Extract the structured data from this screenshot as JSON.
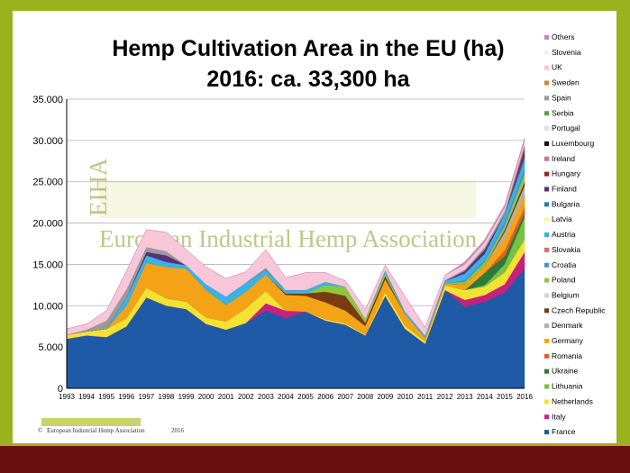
{
  "chart_data": {
    "type": "area",
    "stacked": true,
    "title_line1": "Hemp Cultivation Area in the EU (ha)",
    "title_line2": "2016: ca. 33,300 ha",
    "xlabel": "",
    "ylabel": "",
    "ylim": [
      0,
      35000
    ],
    "yticks": [
      0,
      5000,
      10000,
      15000,
      20000,
      25000,
      30000,
      35000
    ],
    "ytick_labels": [
      "0",
      "5.000",
      "10.000",
      "15.000",
      "20.000",
      "25.000",
      "30.000",
      "35.000"
    ],
    "grid": true,
    "legend_position": "right",
    "x": [
      "1993",
      "1994",
      "1995",
      "1996",
      "1997",
      "1998",
      "1999",
      "2000",
      "2001",
      "2002",
      "2003",
      "2004",
      "2005",
      "2006",
      "2007",
      "2008",
      "2009",
      "2010",
      "2011",
      "2012",
      "2013",
      "2014",
      "2015",
      "2016"
    ],
    "series": [
      {
        "name": "France",
        "color": "#1f5aa6",
        "values": [
          6000,
          6400,
          6200,
          7500,
          11000,
          10000,
          9600,
          7800,
          7100,
          7900,
          9400,
          8500,
          9300,
          8200,
          7700,
          6400,
          11200,
          7200,
          5400,
          11900,
          9900,
          10500,
          11600,
          14500
        ]
      },
      {
        "name": "Italy",
        "color": "#c7207e",
        "values": [
          0,
          0,
          0,
          0,
          0,
          0,
          0,
          0,
          0,
          0,
          900,
          900,
          0,
          0,
          0,
          0,
          0,
          0,
          0,
          0,
          800,
          800,
          1000,
          2000
        ]
      },
      {
        "name": "Netherlands",
        "color": "#f4e233",
        "values": [
          500,
          500,
          1000,
          1000,
          1200,
          900,
          900,
          800,
          1000,
          1800,
          1500,
          0,
          0,
          200,
          200,
          150,
          500,
          400,
          300,
          600,
          1200,
          1000,
          1400,
          1500
        ]
      },
      {
        "name": "Lithuania",
        "color": "#79c143",
        "values": [
          0,
          0,
          0,
          0,
          0,
          0,
          0,
          0,
          0,
          0,
          0,
          0,
          0,
          0,
          0,
          0,
          0,
          0,
          0,
          0,
          0,
          200,
          1000,
          2700
        ]
      },
      {
        "name": "Ukraine",
        "color": "#2d7a3a",
        "values": [
          0,
          0,
          0,
          0,
          0,
          0,
          0,
          0,
          0,
          0,
          0,
          0,
          0,
          0,
          0,
          0,
          0,
          0,
          0,
          0,
          0,
          1500,
          1000,
          500
        ]
      },
      {
        "name": "Romania",
        "color": "#e85c20",
        "values": [
          0,
          0,
          0,
          0,
          0,
          0,
          0,
          0,
          0,
          0,
          0,
          0,
          0,
          0,
          0,
          0,
          0,
          0,
          0,
          0,
          0,
          0,
          700,
          800
        ]
      },
      {
        "name": "Germany",
        "color": "#f5a316",
        "values": [
          0,
          0,
          0,
          1500,
          3000,
          3800,
          4000,
          3300,
          2000,
          2000,
          2000,
          1900,
          1900,
          2000,
          1500,
          1000,
          1500,
          1400,
          400,
          200,
          700,
          800,
          1500,
          1500
        ]
      },
      {
        "name": "Denmark",
        "color": "#b0b0b0",
        "values": [
          0,
          0,
          0,
          0,
          0,
          0,
          0,
          0,
          0,
          0,
          0,
          0,
          0,
          0,
          0,
          0,
          0,
          0,
          0,
          0,
          0,
          0,
          700,
          1000
        ]
      },
      {
        "name": "Czech Republic",
        "color": "#7a3b10",
        "values": [
          0,
          0,
          0,
          0,
          0,
          0,
          0,
          0,
          0,
          0,
          0,
          200,
          300,
          1300,
          1800,
          400,
          400,
          0,
          0,
          0,
          0,
          0,
          300,
          500
        ]
      },
      {
        "name": "Belgium",
        "color": "#d6d6d6",
        "values": [
          0,
          0,
          0,
          0,
          0,
          0,
          0,
          0,
          0,
          0,
          0,
          0,
          0,
          0,
          0,
          0,
          0,
          0,
          0,
          0,
          0,
          0,
          0,
          0
        ]
      },
      {
        "name": "Poland",
        "color": "#8dc63f",
        "values": [
          0,
          0,
          0,
          0,
          0,
          0,
          0,
          0,
          0,
          0,
          0,
          0,
          0,
          800,
          1100,
          500,
          400,
          0,
          0,
          0,
          300,
          500,
          500,
          1000
        ]
      },
      {
        "name": "Croatia",
        "color": "#4a8fd4",
        "values": [
          0,
          0,
          0,
          0,
          0,
          0,
          0,
          0,
          0,
          0,
          0,
          0,
          0,
          0,
          0,
          0,
          0,
          0,
          0,
          0,
          200,
          300,
          500,
          600
        ]
      },
      {
        "name": "Slovakia",
        "color": "#e06a6a",
        "values": [
          0,
          0,
          0,
          0,
          0,
          0,
          0,
          0,
          0,
          0,
          0,
          0,
          0,
          0,
          0,
          0,
          0,
          0,
          0,
          0,
          0,
          0,
          0,
          0
        ]
      },
      {
        "name": "Austria",
        "color": "#37b3e5",
        "values": [
          0,
          0,
          0,
          1000,
          900,
          600,
          400,
          700,
          1000,
          1100,
          600,
          400,
          400,
          400,
          0,
          0,
          300,
          300,
          300,
          300,
          800,
          700,
          900,
          1000
        ]
      },
      {
        "name": "Latvia",
        "color": "#fff3a0",
        "values": [
          0,
          0,
          0,
          0,
          0,
          0,
          0,
          0,
          0,
          0,
          0,
          0,
          0,
          0,
          0,
          0,
          0,
          0,
          0,
          0,
          0,
          0,
          0,
          0
        ]
      },
      {
        "name": "Bulgaria",
        "color": "#2b7ba8",
        "values": [
          0,
          0,
          0,
          0,
          0,
          0,
          0,
          0,
          0,
          0,
          0,
          0,
          0,
          0,
          0,
          0,
          0,
          0,
          0,
          0,
          0,
          0,
          0,
          500
        ]
      },
      {
        "name": "Finland",
        "color": "#5a2d80",
        "values": [
          0,
          0,
          0,
          0,
          400,
          800,
          0,
          0,
          0,
          0,
          0,
          0,
          0,
          0,
          0,
          0,
          0,
          0,
          0,
          0,
          300,
          500,
          0,
          500
        ]
      },
      {
        "name": "Hungary",
        "color": "#a32020",
        "values": [
          0,
          0,
          0,
          0,
          0,
          0,
          0,
          0,
          0,
          0,
          0,
          0,
          0,
          0,
          0,
          0,
          0,
          0,
          0,
          0,
          0,
          0,
          0,
          500
        ]
      },
      {
        "name": "Ireland",
        "color": "#d07090",
        "values": [
          0,
          0,
          0,
          0,
          0,
          0,
          0,
          0,
          0,
          0,
          0,
          0,
          0,
          0,
          0,
          0,
          0,
          0,
          0,
          0,
          0,
          0,
          0,
          0
        ]
      },
      {
        "name": "Luxembourg",
        "color": "#111111",
        "values": [
          0,
          0,
          0,
          0,
          0,
          0,
          0,
          0,
          0,
          0,
          0,
          0,
          0,
          0,
          0,
          0,
          0,
          0,
          0,
          0,
          0,
          0,
          0,
          0
        ]
      },
      {
        "name": "Portugal",
        "color": "#cfe3f2",
        "values": [
          0,
          0,
          0,
          0,
          0,
          0,
          0,
          0,
          0,
          0,
          0,
          0,
          0,
          0,
          0,
          0,
          0,
          0,
          0,
          0,
          0,
          0,
          0,
          0
        ]
      },
      {
        "name": "Serbia",
        "color": "#5f9e4a",
        "values": [
          0,
          0,
          0,
          0,
          0,
          0,
          0,
          0,
          0,
          0,
          0,
          0,
          0,
          0,
          0,
          0,
          0,
          0,
          0,
          0,
          0,
          0,
          0,
          0
        ]
      },
      {
        "name": "Spain",
        "color": "#9a9a9a",
        "values": [
          0,
          200,
          1000,
          1000,
          600,
          500,
          0,
          0,
          0,
          0,
          200,
          0,
          0,
          0,
          0,
          0,
          0,
          0,
          0,
          100,
          200,
          300,
          400,
          500
        ]
      },
      {
        "name": "Sweden",
        "color": "#c9893a",
        "values": [
          0,
          0,
          0,
          0,
          0,
          0,
          0,
          0,
          0,
          0,
          0,
          0,
          0,
          0,
          0,
          0,
          0,
          0,
          0,
          0,
          0,
          0,
          0,
          0
        ]
      },
      {
        "name": "UK",
        "color": "#f7c6d9",
        "values": [
          700,
          700,
          1200,
          2200,
          2100,
          2300,
          1900,
          2100,
          2200,
          1300,
          2200,
          1500,
          2100,
          1100,
          700,
          1100,
          600,
          1800,
          1000,
          600,
          600,
          600,
          400,
          400
        ]
      },
      {
        "name": "Slovenia",
        "color": "#f2f2f2",
        "values": [
          0,
          0,
          0,
          0,
          0,
          0,
          0,
          0,
          0,
          0,
          0,
          0,
          0,
          0,
          0,
          0,
          0,
          0,
          0,
          0,
          0,
          0,
          0,
          0
        ]
      },
      {
        "name": "Others",
        "color": "#c089b8",
        "values": [
          0,
          0,
          0,
          0,
          0,
          0,
          0,
          0,
          0,
          0,
          0,
          0,
          0,
          0,
          0,
          0,
          0,
          0,
          0,
          0,
          300,
          300,
          300,
          300
        ]
      }
    ],
    "watermark": {
      "letters": "EIHA",
      "text": "European Industrial Hemp Association"
    },
    "footer": {
      "copyright": "©",
      "org": "European Industrial Hemp Association",
      "year": "2016"
    }
  }
}
